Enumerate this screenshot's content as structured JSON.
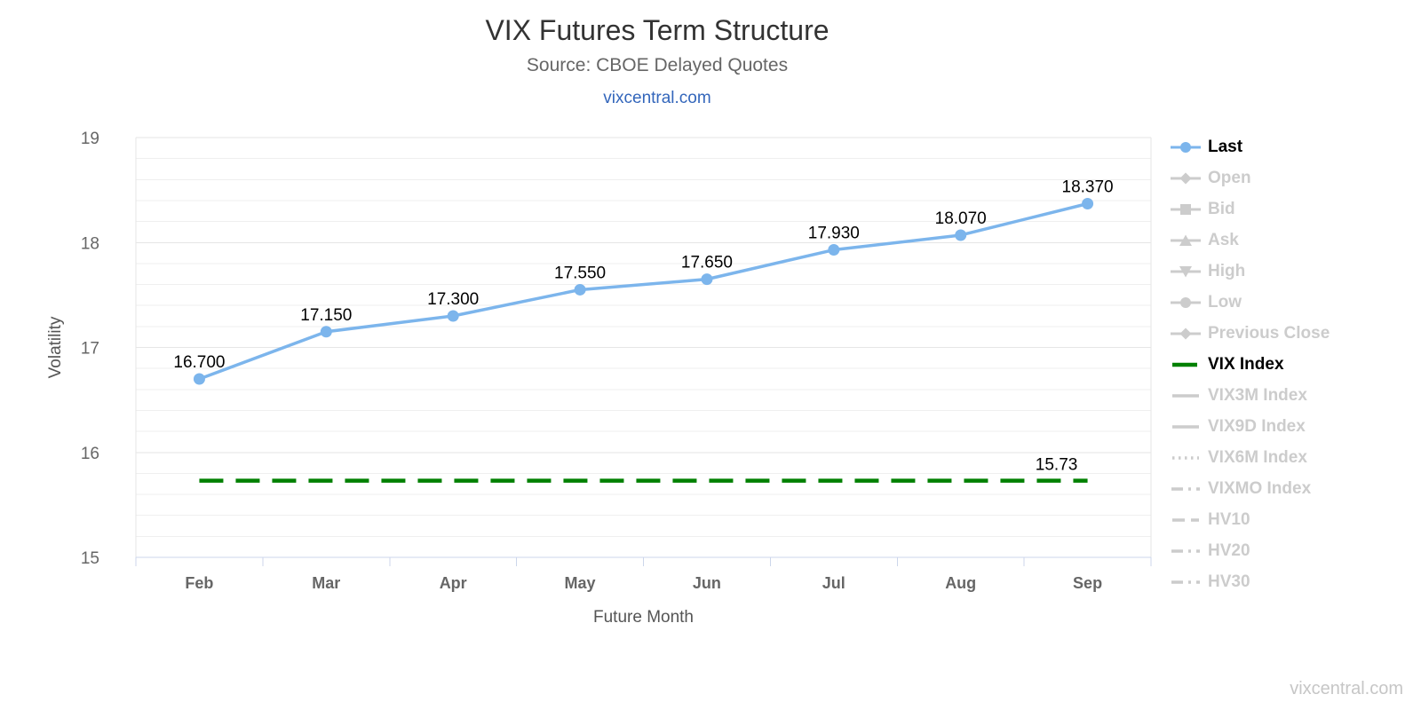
{
  "header": {
    "link": "vixcentral.com"
  },
  "watermark": "vixcentral.com",
  "colors": {
    "last_series": "#7cb5ec",
    "vix_index": "#008000",
    "grid_major": "#e6e6e6",
    "grid_minor": "#efefef",
    "axis_line": "#ccd6eb",
    "tick_label": "#666666",
    "axis_title": "#555555",
    "data_label": "#000000",
    "title": "#333333",
    "subtitle": "#666666",
    "link": "#3366bb",
    "legend_active": "#000000",
    "legend_disabled": "#cccccc",
    "watermark": "#c6c6c6"
  },
  "chart_data": {
    "type": "line",
    "title": "VIX Futures Term Structure",
    "subtitle": "Source: CBOE Delayed Quotes",
    "xlabel": "Future Month",
    "ylabel": "Volatility",
    "categories": [
      "Feb",
      "Mar",
      "Apr",
      "May",
      "Jun",
      "Jul",
      "Aug",
      "Sep"
    ],
    "ylim": [
      15,
      19
    ],
    "y_ticks": [
      15,
      16,
      17,
      18,
      19
    ],
    "minor_tick_interval": 0.2,
    "grid": true,
    "legend_position": "right",
    "series": [
      {
        "name": "Last",
        "type": "line",
        "color": "#7cb5ec",
        "marker": "circle",
        "values": [
          16.7,
          17.15,
          17.3,
          17.55,
          17.65,
          17.93,
          18.07,
          18.37
        ],
        "data_labels": [
          "16.700",
          "17.150",
          "17.300",
          "17.550",
          "17.650",
          "17.930",
          "18.070",
          "18.370"
        ]
      },
      {
        "name": "VIX Index",
        "type": "horizontal-dashed-line",
        "color": "#008000",
        "value": 15.73,
        "data_label": "15.73"
      }
    ]
  },
  "legend": {
    "items": [
      {
        "label": "Last",
        "marker": "line-circle",
        "active": true,
        "color": "#7cb5ec"
      },
      {
        "label": "Open",
        "marker": "line-diamond",
        "active": false
      },
      {
        "label": "Bid",
        "marker": "line-square",
        "active": false
      },
      {
        "label": "Ask",
        "marker": "line-triangle-up",
        "active": false
      },
      {
        "label": "High",
        "marker": "line-triangle-down",
        "active": false
      },
      {
        "label": "Low",
        "marker": "line-circle-solid",
        "active": false
      },
      {
        "label": "Previous Close",
        "marker": "line-diamond",
        "active": false
      },
      {
        "label": "VIX Index",
        "marker": "dash",
        "active": true,
        "color": "#008000"
      },
      {
        "label": "VIX3M Index",
        "marker": "line",
        "active": false
      },
      {
        "label": "VIX9D Index",
        "marker": "line",
        "active": false
      },
      {
        "label": "VIX6M Index",
        "marker": "dotted",
        "active": false
      },
      {
        "label": "VIXMO Index",
        "marker": "dash-dot",
        "active": false
      },
      {
        "label": "HV10",
        "marker": "short-dash",
        "active": false
      },
      {
        "label": "HV20",
        "marker": "dash-dot",
        "active": false
      },
      {
        "label": "HV30",
        "marker": "dash-dot",
        "active": false
      }
    ]
  }
}
